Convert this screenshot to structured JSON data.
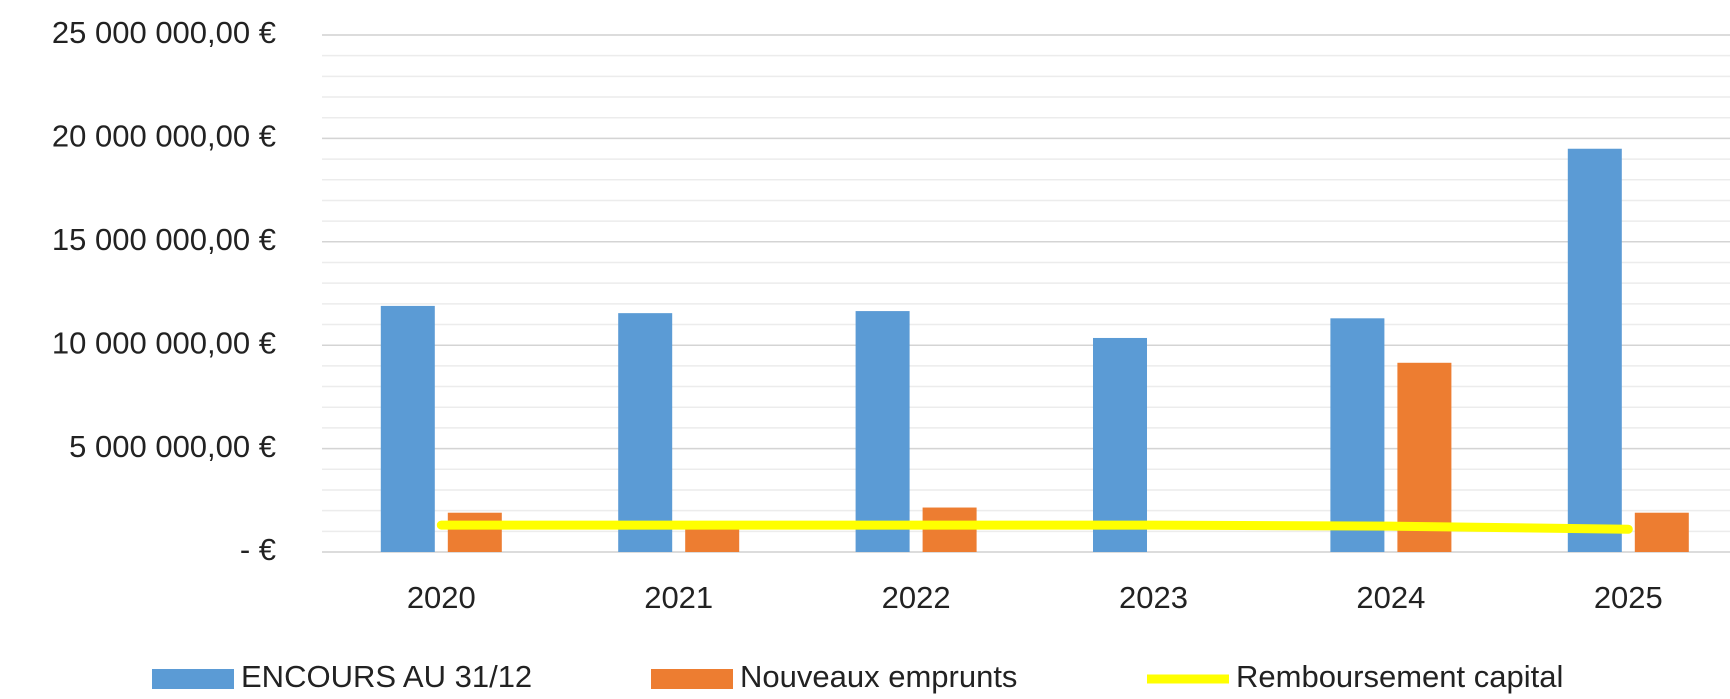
{
  "chart_data": {
    "type": "bar",
    "categories": [
      "2020",
      "2021",
      "2022",
      "2023",
      "2024",
      "2025"
    ],
    "series": [
      {
        "name": "ENCOURS AU 31/12",
        "color": "#5b9bd5",
        "type": "bar",
        "values": [
          11900000,
          11550000,
          11650000,
          10350000,
          11300000,
          19500000
        ]
      },
      {
        "name": "Nouveaux emprunts",
        "color": "#ed7d31",
        "type": "bar",
        "values": [
          1900000,
          1100000,
          2150000,
          0,
          9150000,
          1900000
        ]
      },
      {
        "name": "Remboursement capital",
        "color": "#ffff00",
        "type": "line",
        "values": [
          1300000,
          1300000,
          1300000,
          1300000,
          1250000,
          1100000
        ]
      }
    ],
    "ylim": [
      0,
      25000000
    ],
    "yticks": [
      {
        "value": 0,
        "label": "-  €"
      },
      {
        "value": 5000000,
        "label": "5 000 000,00 €"
      },
      {
        "value": 10000000,
        "label": "10 000 000,00 €"
      },
      {
        "value": 15000000,
        "label": "15 000 000,00 €"
      },
      {
        "value": 20000000,
        "label": "20 000 000,00 €"
      },
      {
        "value": 25000000,
        "label": "25 000 000,00 €"
      }
    ],
    "grid": true,
    "minor_grid": 1000000,
    "legend": "bottom"
  }
}
